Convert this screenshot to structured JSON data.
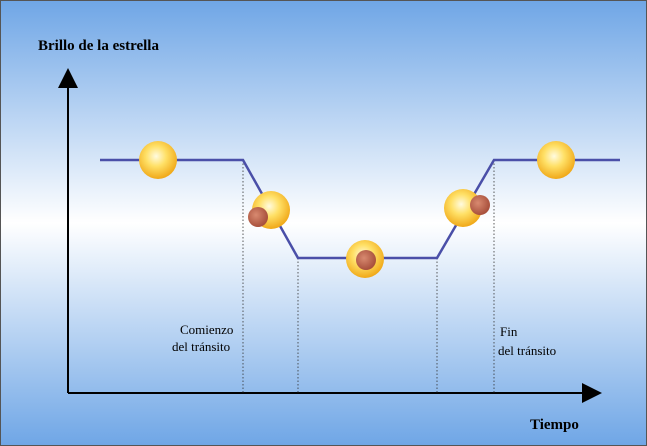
{
  "labels": {
    "y_axis": "Brillo de la estrella",
    "x_axis": "Tiempo"
  },
  "annotations": [
    {
      "lines": [
        "Comienzo",
        "del tránsito"
      ]
    },
    {
      "lines": [
        "Fin",
        "del tránsito"
      ]
    }
  ]
}
